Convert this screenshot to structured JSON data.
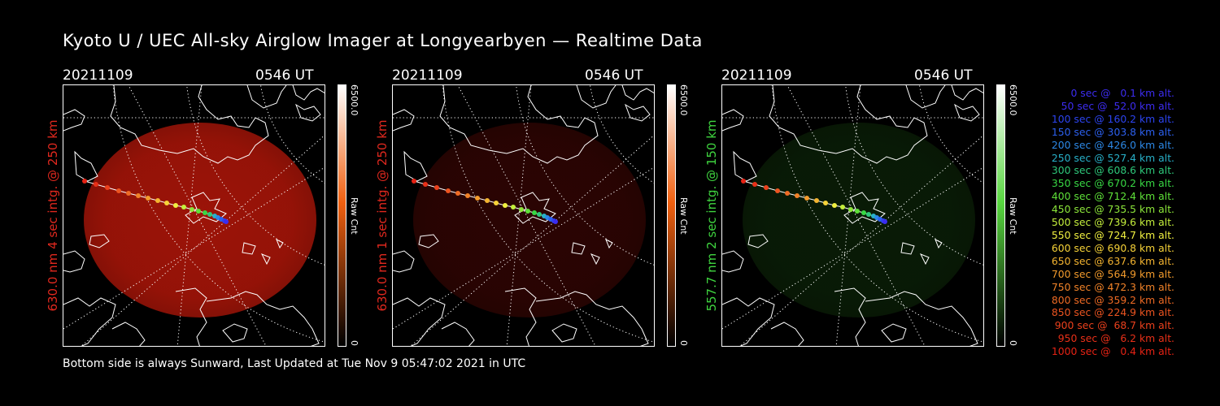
{
  "title": "Kyoto U / UEC All-sky Airglow Imager at Longyearbyen — Realtime Data",
  "panels": [
    {
      "date": "20211109",
      "time": "0546 UT",
      "channel_label": "630.0 nm 4 sec intg. @ 250 km",
      "label_color": "#e0281e",
      "glow_color": "#c8190a",
      "glow_level": 0.78,
      "cbar_top": "#ffffff",
      "cbar_mid": "#f06010",
      "cbar_bottom": "#000000",
      "cbar_max": "6500.0",
      "cbar_min": "0",
      "cbar_unit": "Raw Cnt"
    },
    {
      "date": "20211109",
      "time": "0546 UT",
      "channel_label": "630.0 nm 1 sec intg. @ 250 km",
      "label_color": "#e0281e",
      "glow_color": "#7a0c08",
      "glow_level": 0.35,
      "cbar_top": "#ffffff",
      "cbar_mid": "#f06010",
      "cbar_bottom": "#000000",
      "cbar_max": "6500.0",
      "cbar_min": "0",
      "cbar_unit": "Raw Cnt"
    },
    {
      "date": "20211109",
      "time": "0546 UT",
      "channel_label": "557.7 nm 2 sec intg. @ 150 km",
      "label_color": "#3fd43f",
      "glow_color": "#1e5a14",
      "glow_level": 0.3,
      "cbar_top": "#ffffff",
      "cbar_mid": "#58d640",
      "cbar_bottom": "#000000",
      "cbar_max": "6500.0",
      "cbar_min": "0",
      "cbar_unit": "Raw Cnt"
    }
  ],
  "legend": [
    {
      "text": "0 sec @   0.1 km alt.",
      "color": "#3c2cf0"
    },
    {
      "text": "50 sec @  52.0 km alt.",
      "color": "#3c2cf0"
    },
    {
      "text": "100 sec @ 160.2 km alt.",
      "color": "#2c44f0"
    },
    {
      "text": "150 sec @ 303.8 km alt.",
      "color": "#2c60ee"
    },
    {
      "text": "200 sec @ 426.0 km alt.",
      "color": "#2c88e6"
    },
    {
      "text": "250 sec @ 527.4 km alt.",
      "color": "#28b0c8"
    },
    {
      "text": "300 sec @ 608.6 km alt.",
      "color": "#2ec87a"
    },
    {
      "text": "350 sec @ 670.2 km alt.",
      "color": "#38d844"
    },
    {
      "text": "400 sec @ 712.4 km alt.",
      "color": "#5ee038"
    },
    {
      "text": "450 sec @ 735.5 km alt.",
      "color": "#8ce63a"
    },
    {
      "text": "500 sec @ 739.6 km alt.",
      "color": "#c4ee3c"
    },
    {
      "text": "550 sec @ 724.7 km alt.",
      "color": "#f0f040"
    },
    {
      "text": "600 sec @ 690.8 km alt.",
      "color": "#f6d238"
    },
    {
      "text": "650 sec @ 637.6 km alt.",
      "color": "#f4b430"
    },
    {
      "text": "700 sec @ 564.9 km alt.",
      "color": "#f29a2c"
    },
    {
      "text": "750 sec @ 472.3 km alt.",
      "color": "#f08228"
    },
    {
      "text": "800 sec @ 359.2 km alt.",
      "color": "#ee6a24"
    },
    {
      "text": "850 sec @ 224.9 km alt.",
      "color": "#ec5420"
    },
    {
      "text": "900 sec @  68.7 km alt.",
      "color": "#ea401c"
    },
    {
      "text": "950 sec @   6.2 km alt.",
      "color": "#e83018"
    },
    {
      "text": "1000 sec @   0.4 km alt.",
      "color": "#e62214"
    }
  ],
  "footer": "Bottom side is always Sunward, Last Updated at Tue Nov  9 05:47:02 2021 in UTC"
}
